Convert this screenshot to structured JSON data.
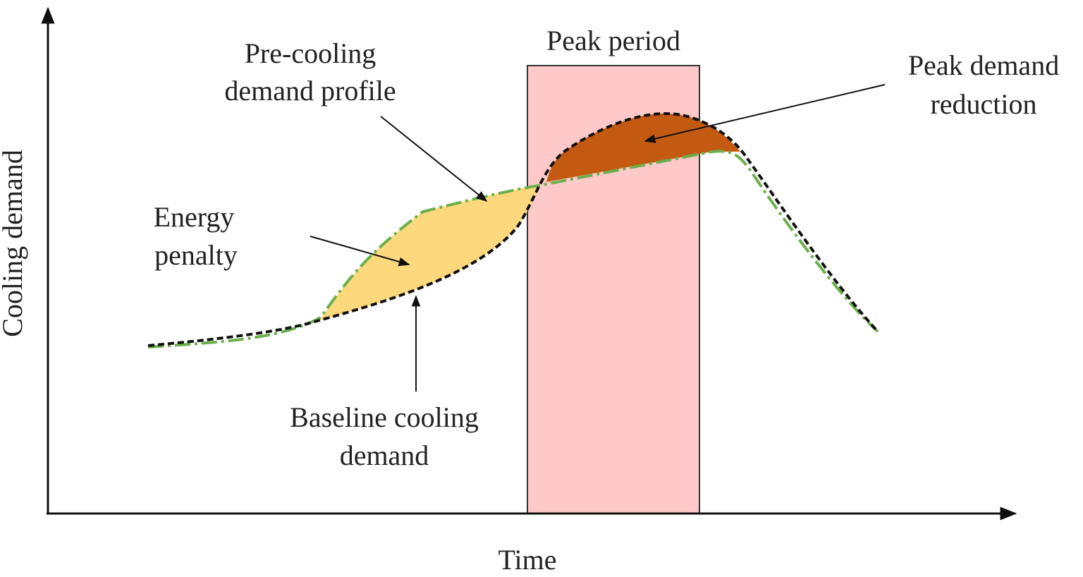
{
  "axes": {
    "y_label": "Cooling demand",
    "x_label": "Time"
  },
  "peak_period": "Peak period",
  "annotations": {
    "pre_cooling": [
      "Pre-cooling",
      "demand profile"
    ],
    "peak_reduction": [
      "Peak demand",
      "reduction"
    ],
    "energy_penalty": [
      "Energy",
      "penalty"
    ],
    "baseline": [
      "Baseline cooling",
      "demand"
    ]
  }
}
